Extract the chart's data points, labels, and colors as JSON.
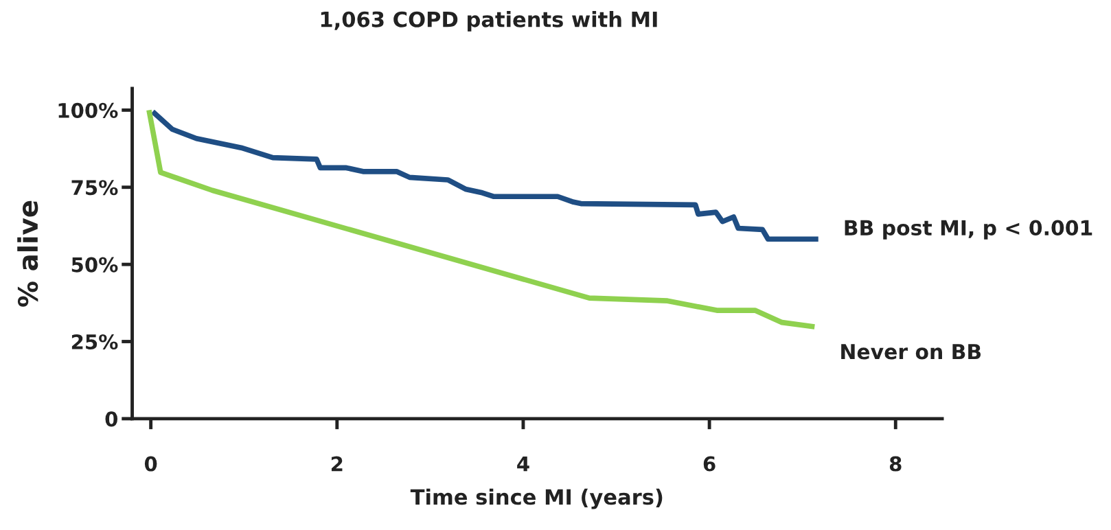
{
  "chart_data": {
    "type": "line",
    "title": "1,063 COPD patients with MI",
    "xlabel": "Time since MI (years)",
    "ylabel": "% alive",
    "xlim": [
      -0.2,
      8.5
    ],
    "ylim": [
      0,
      107
    ],
    "xticks": [
      0,
      2,
      4,
      6,
      8
    ],
    "yticks": [
      {
        "value": 0,
        "label": "0"
      },
      {
        "value": 25,
        "label": "25%"
      },
      {
        "value": 50,
        "label": "50%"
      },
      {
        "value": 75,
        "label": "75%"
      },
      {
        "value": 100,
        "label": "100%"
      }
    ],
    "grid": false,
    "legend": false,
    "marker": "none",
    "line_style": "solid",
    "series": [
      {
        "name": "BB post MI, p < 0.001",
        "color": "#1f4e84",
        "x": [
          0.02,
          0.23,
          0.49,
          0.97,
          1.31,
          1.78,
          1.82,
          2.1,
          2.28,
          2.64,
          2.78,
          3.19,
          3.38,
          3.56,
          3.68,
          4.37,
          4.54,
          4.62,
          5.85,
          5.88,
          6.07,
          6.14,
          6.26,
          6.31,
          6.57,
          6.63,
          7.17
        ],
        "values": [
          99.5,
          93.8,
          90.8,
          87.8,
          84.6,
          84.1,
          81.3,
          81.3,
          80.1,
          80.1,
          78.2,
          77.4,
          74.4,
          73.2,
          72.0,
          72.0,
          70.2,
          69.7,
          69.3,
          66.3,
          66.9,
          63.9,
          65.4,
          61.7,
          61.3,
          58.2,
          58.2
        ]
      },
      {
        "name": "Never on BB",
        "color": "#8fd14f",
        "x": [
          -0.02,
          0.105,
          0.66,
          4.71,
          5.55,
          6.08,
          6.49,
          6.78,
          7.13
        ],
        "values": [
          100,
          79.8,
          74.0,
          39.1,
          38.2,
          35.1,
          35.1,
          31.2,
          29.8
        ]
      }
    ]
  }
}
